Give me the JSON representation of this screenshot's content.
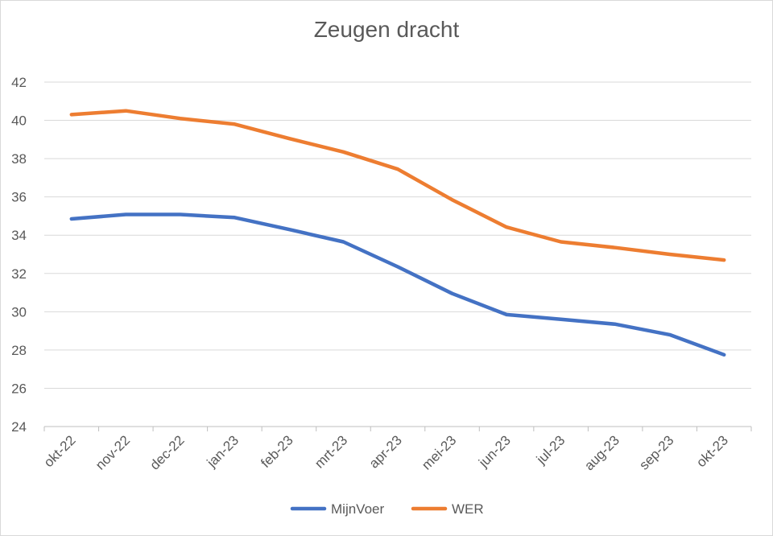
{
  "chart_data": {
    "type": "line",
    "title": "Zeugen dracht",
    "xlabel": "",
    "ylabel": "",
    "categories": [
      "okt-22",
      "nov-22",
      "dec-22",
      "jan-23",
      "feb-23",
      "mrt-23",
      "apr-23",
      "mei-23",
      "jun-23",
      "jul-23",
      "aug-23",
      "sep-23",
      "okt-23"
    ],
    "ylim": [
      24,
      42
    ],
    "yticks": [
      24,
      26,
      28,
      30,
      32,
      34,
      36,
      38,
      40,
      42
    ],
    "grid": true,
    "legend": "bottom",
    "series": [
      {
        "name": "MijnVoer",
        "color": "#4472C4",
        "values": [
          34.85,
          35.08,
          35.08,
          34.92,
          34.3,
          33.65,
          32.35,
          30.95,
          29.85,
          29.6,
          29.35,
          28.8,
          27.75
        ]
      },
      {
        "name": "WER",
        "color": "#ED7D31",
        "values": [
          40.3,
          40.5,
          40.1,
          39.8,
          39.05,
          38.35,
          37.45,
          35.85,
          34.42,
          33.65,
          33.35,
          33.0,
          32.7
        ]
      }
    ]
  }
}
